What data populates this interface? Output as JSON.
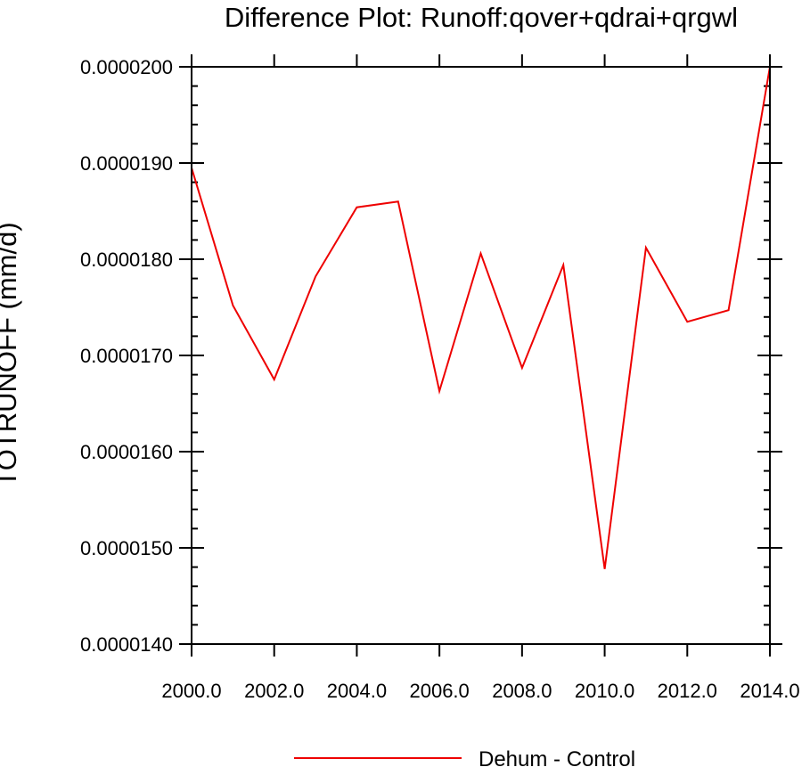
{
  "chart_data": {
    "type": "line",
    "title": "Difference Plot: Runoff:qover+qdrai+qrgwl",
    "ylabel": "TOTRUNOFF (mm/d)",
    "xlabel": "",
    "xlim": [
      2000,
      2014
    ],
    "ylim": [
      1.4e-05,
      2e-05
    ],
    "xticks": [
      2000,
      2002,
      2004,
      2006,
      2008,
      2010,
      2012,
      2014
    ],
    "xtick_labels": [
      "2000.0",
      "2002.0",
      "2004.0",
      "2006.0",
      "2008.0",
      "2010.0",
      "2012.0",
      "2014.0"
    ],
    "yticks": [
      1.4e-05,
      1.5e-05,
      1.6e-05,
      1.7e-05,
      1.8e-05,
      1.9e-05,
      2e-05
    ],
    "ytick_labels": [
      "0.0000140",
      "0.0000150",
      "0.0000160",
      "0.0000170",
      "0.0000180",
      "0.0000190",
      "0.0000200"
    ],
    "grid": false,
    "legend_position": "bottom-center",
    "series": [
      {
        "name": "Dehum - Control",
        "color": "#ee0000",
        "x": [
          2000,
          2001,
          2002,
          2003,
          2004,
          2005,
          2006,
          2007,
          2008,
          2009,
          2010,
          2011,
          2012,
          2013,
          2014
        ],
        "y": [
          1.895e-05,
          1.752e-05,
          1.675e-05,
          1.782e-05,
          1.854e-05,
          1.86e-05,
          1.663e-05,
          1.806e-05,
          1.687e-05,
          1.794e-05,
          1.478e-05,
          1.812e-05,
          1.735e-05,
          1.747e-05,
          2e-05
        ]
      }
    ]
  }
}
